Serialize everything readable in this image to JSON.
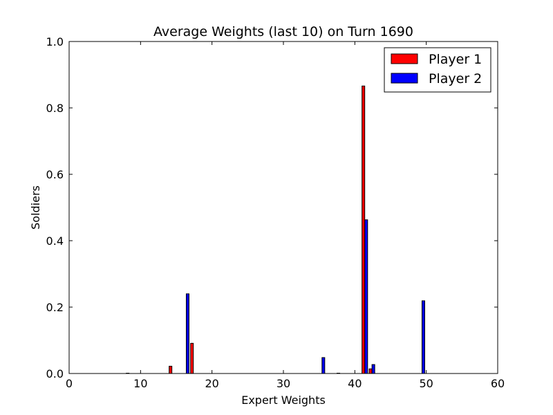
{
  "chart_data": {
    "type": "bar",
    "title": "Average Weights (last 10) on Turn 1690",
    "xlabel": "Expert Weights",
    "ylabel": "Soldiers",
    "xlim": [
      0,
      60
    ],
    "ylim": [
      0,
      1.0
    ],
    "xticks": [
      "0",
      "10",
      "20",
      "30",
      "40",
      "50",
      "60"
    ],
    "xtick_values": [
      0,
      10,
      20,
      30,
      40,
      50,
      60
    ],
    "yticks": [
      "0.0",
      "0.2",
      "0.4",
      "0.6",
      "0.8",
      "1.0"
    ],
    "ytick_values": [
      0,
      0.2,
      0.4,
      0.6,
      0.8,
      1.0
    ],
    "grid": false,
    "legend_position": "top-right",
    "series": [
      {
        "name": "Player 1",
        "color": "#ff0000",
        "x": [
          8,
          14,
          17,
          37.5,
          41,
          42
        ],
        "values": [
          0.001,
          0.022,
          0.091,
          0.001,
          0.866,
          0.014
        ]
      },
      {
        "name": "Player 2",
        "color": "#0000ff",
        "x": [
          16.4,
          35.4,
          41.4,
          42.4,
          49.4
        ],
        "values": [
          0.24,
          0.048,
          0.463,
          0.027,
          0.219
        ]
      }
    ]
  }
}
